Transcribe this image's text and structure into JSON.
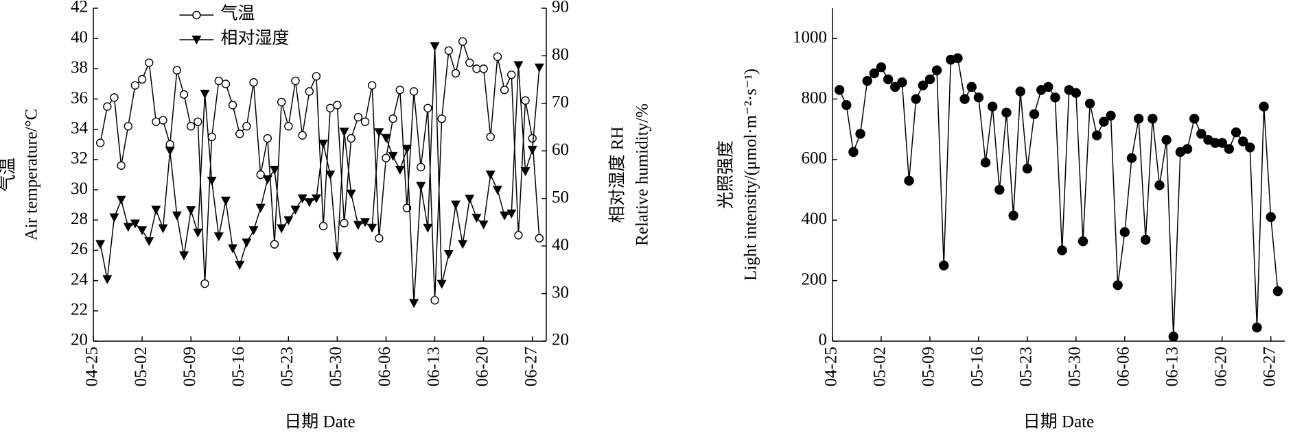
{
  "chart_data": [
    {
      "type": "line",
      "xlabel": "日期 Date",
      "ylabel": [
        "气温",
        "Air temperature/°C"
      ],
      "y2label": [
        "相对湿度 RH",
        "Relative humidity/%"
      ],
      "x": [
        "04-26",
        "04-27",
        "04-28",
        "04-29",
        "04-30",
        "05-01",
        "05-02",
        "05-03",
        "05-04",
        "05-05",
        "05-06",
        "05-07",
        "05-08",
        "05-09",
        "05-10",
        "05-11",
        "05-12",
        "05-13",
        "05-14",
        "05-15",
        "05-16",
        "05-17",
        "05-18",
        "05-19",
        "05-20",
        "05-21",
        "05-22",
        "05-23",
        "05-24",
        "05-25",
        "05-26",
        "05-27",
        "05-28",
        "05-29",
        "05-30",
        "05-31",
        "06-01",
        "06-02",
        "06-03",
        "06-04",
        "06-05",
        "06-06",
        "06-07",
        "06-08",
        "06-09",
        "06-10",
        "06-11",
        "06-12",
        "06-13",
        "06-14",
        "06-15",
        "06-16",
        "06-17",
        "06-18",
        "06-19",
        "06-20",
        "06-21",
        "06-22",
        "06-23",
        "06-24",
        "06-25",
        "06-26",
        "06-27",
        "06-28"
      ],
      "series": [
        {
          "name": "气温",
          "color": "#000000",
          "marker": "circle-open",
          "values": [
            33.1,
            35.5,
            36.1,
            31.6,
            34.2,
            36.9,
            37.3,
            38.4,
            34.5,
            34.6,
            33.0,
            37.9,
            36.3,
            34.2,
            34.5,
            23.8,
            33.5,
            37.2,
            37.0,
            35.6,
            33.7,
            34.2,
            37.1,
            31.0,
            33.4,
            26.4,
            35.8,
            34.2,
            37.2,
            33.6,
            36.5,
            37.5,
            27.6,
            35.4,
            35.6,
            27.8,
            33.4,
            34.8,
            34.5,
            36.9,
            26.8,
            32.1,
            34.7,
            36.6,
            28.8,
            36.5,
            31.5,
            35.4,
            22.7,
            34.7,
            39.2,
            37.7,
            39.8,
            38.4,
            38.0,
            38.0,
            33.5,
            38.8,
            36.6,
            37.6,
            27.0,
            35.9,
            33.4,
            26.8
          ]
        },
        {
          "name": "相对湿度",
          "color": "#000000",
          "marker": "triangle-down",
          "axis": "y2",
          "values": [
            40.4,
            33,
            46,
            49.7,
            44,
            44.7,
            43.3,
            41,
            47.6,
            43.7,
            60,
            46.4,
            38,
            47.5,
            42.8,
            72,
            53.7,
            42,
            49.5,
            39.5,
            36,
            40.7,
            43.3,
            48,
            54,
            56,
            43.7,
            45.4,
            47.6,
            50,
            49.2,
            50,
            61.5,
            55,
            37.8,
            64,
            51,
            44.4,
            45,
            43.8,
            63.9,
            62.7,
            58.9,
            56,
            60.4,
            28,
            52.6,
            43.8,
            82,
            32,
            38.3,
            48.7,
            40.4,
            49.9,
            45.9,
            44.5,
            55,
            51.8,
            46.4,
            46.8,
            78,
            55.7,
            60.2,
            77.5
          ]
        }
      ],
      "xlim": [
        "04-25",
        "06-29"
      ],
      "xticks": [
        "04-25",
        "05-02",
        "05-09",
        "05-16",
        "05-23",
        "05-30",
        "06-06",
        "06-13",
        "06-20",
        "06-27"
      ],
      "ylim": [
        20,
        42
      ],
      "yticks": [
        20,
        22,
        24,
        26,
        28,
        30,
        32,
        34,
        36,
        38,
        40,
        42
      ],
      "y2lim": [
        20,
        90
      ],
      "y2ticks": [
        20,
        30,
        40,
        50,
        60,
        70,
        80,
        90
      ],
      "legend": "upper center"
    },
    {
      "type": "line",
      "xlabel": "日期 Date",
      "ylabel": [
        "光照强度",
        "Light intensity/(μmol·m⁻²·s⁻¹)"
      ],
      "x": [
        "04-26",
        "04-27",
        "04-28",
        "04-29",
        "04-30",
        "05-01",
        "05-02",
        "05-03",
        "05-04",
        "05-05",
        "05-06",
        "05-07",
        "05-08",
        "05-09",
        "05-10",
        "05-11",
        "05-12",
        "05-13",
        "05-14",
        "05-15",
        "05-16",
        "05-17",
        "05-18",
        "05-19",
        "05-20",
        "05-21",
        "05-22",
        "05-23",
        "05-24",
        "05-25",
        "05-26",
        "05-27",
        "05-28",
        "05-29",
        "05-30",
        "05-31",
        "06-01",
        "06-02",
        "06-03",
        "06-04",
        "06-05",
        "06-06",
        "06-07",
        "06-08",
        "06-09",
        "06-10",
        "06-11",
        "06-12",
        "06-13",
        "06-14",
        "06-15",
        "06-16",
        "06-17",
        "06-18",
        "06-19",
        "06-20",
        "06-21",
        "06-22",
        "06-23",
        "06-24",
        "06-25",
        "06-26",
        "06-27",
        "06-28"
      ],
      "series": [
        {
          "color": "#000000",
          "marker": "circle",
          "values": [
            830,
            780,
            625,
            685,
            860,
            885,
            905,
            865,
            840,
            855,
            530,
            800,
            845,
            865,
            895,
            250,
            930,
            935,
            800,
            840,
            805,
            590,
            775,
            500,
            755,
            415,
            825,
            570,
            750,
            830,
            840,
            805,
            300,
            830,
            820,
            330,
            785,
            680,
            725,
            745,
            185,
            360,
            605,
            735,
            335,
            735,
            515,
            665,
            15,
            625,
            635,
            735,
            685,
            665,
            655,
            655,
            635,
            690,
            660,
            640,
            45,
            775,
            410,
            165
          ]
        }
      ],
      "xlim": [
        "04-25",
        "06-29"
      ],
      "xticks": [
        "04-25",
        "05-02",
        "05-09",
        "05-16",
        "05-23",
        "05-30",
        "06-06",
        "06-13",
        "06-20",
        "06-27"
      ],
      "ylim": [
        0,
        1100
      ],
      "yticks": [
        0,
        200,
        400,
        600,
        800,
        1000
      ]
    }
  ]
}
